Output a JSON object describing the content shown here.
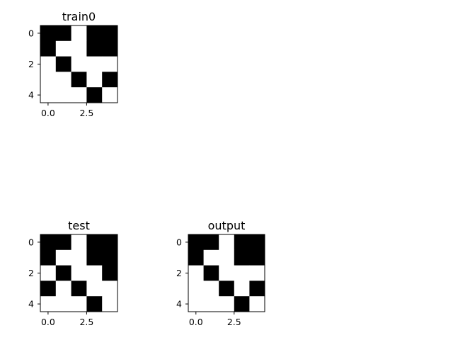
{
  "chart_data": [
    {
      "type": "heatmap",
      "title": "train0",
      "colormap": "binary",
      "rows": 5,
      "cols": 5,
      "values": [
        [
          1,
          1,
          0,
          1,
          1
        ],
        [
          1,
          0,
          0,
          1,
          1
        ],
        [
          0,
          1,
          0,
          0,
          0
        ],
        [
          0,
          0,
          1,
          0,
          1
        ],
        [
          0,
          0,
          0,
          1,
          0
        ]
      ],
      "x_ticks": [
        0.0,
        2.5
      ],
      "x_tick_labels": [
        "0.0",
        "2.5"
      ],
      "y_ticks": [
        0,
        2,
        4
      ],
      "y_tick_labels": [
        "0",
        "2",
        "4"
      ],
      "xlim": [
        -0.5,
        4.5
      ],
      "ylim": [
        4.5,
        -0.5
      ],
      "grid": false
    },
    {
      "type": "heatmap",
      "title": "test",
      "colormap": "binary",
      "rows": 5,
      "cols": 5,
      "values": [
        [
          1,
          1,
          0,
          1,
          1
        ],
        [
          1,
          0,
          0,
          1,
          1
        ],
        [
          0,
          1,
          0,
          0,
          1
        ],
        [
          1,
          0,
          1,
          0,
          0
        ],
        [
          0,
          0,
          0,
          1,
          0
        ]
      ],
      "x_ticks": [
        0.0,
        2.5
      ],
      "x_tick_labels": [
        "0.0",
        "2.5"
      ],
      "y_ticks": [
        0,
        2,
        4
      ],
      "y_tick_labels": [
        "0",
        "2",
        "4"
      ],
      "xlim": [
        -0.5,
        4.5
      ],
      "ylim": [
        4.5,
        -0.5
      ],
      "grid": false
    },
    {
      "type": "heatmap",
      "title": "output",
      "colormap": "binary",
      "rows": 5,
      "cols": 5,
      "values": [
        [
          1,
          1,
          0,
          1,
          1
        ],
        [
          1,
          0,
          0,
          1,
          1
        ],
        [
          0,
          1,
          0,
          0,
          0
        ],
        [
          0,
          0,
          1,
          0,
          1
        ],
        [
          0,
          0,
          0,
          1,
          0
        ]
      ],
      "x_ticks": [
        0.0,
        2.5
      ],
      "x_tick_labels": [
        "0.0",
        "2.5"
      ],
      "y_ticks": [
        0,
        2,
        4
      ],
      "y_tick_labels": [
        "0",
        "2",
        "4"
      ],
      "xlim": [
        -0.5,
        4.5
      ],
      "ylim": [
        4.5,
        -0.5
      ],
      "grid": false
    }
  ]
}
